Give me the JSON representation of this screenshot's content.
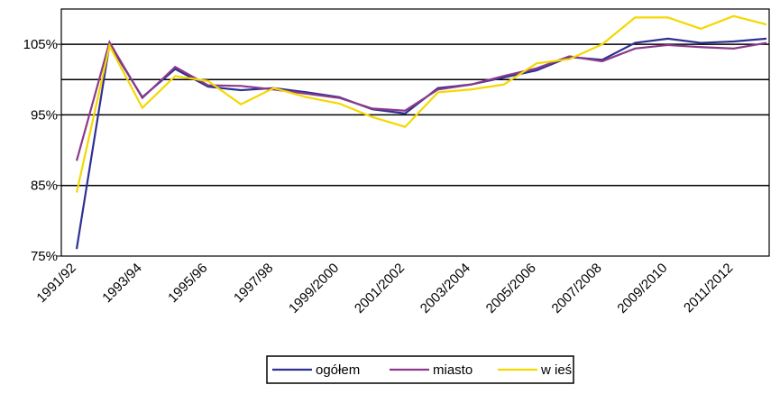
{
  "chart_data": {
    "type": "line",
    "categories": [
      "1991/92",
      null,
      "1993/94",
      null,
      "1995/96",
      null,
      "1997/98",
      null,
      "1999/2000",
      null,
      "2001/2002",
      null,
      "2003/2004",
      null,
      "2005/2006",
      null,
      "2007/2008",
      null,
      "2009/2010",
      null,
      "2011/2012",
      null
    ],
    "series": [
      {
        "name": "ogółem",
        "color": "#2e3192",
        "values": [
          76,
          105,
          97.5,
          101.5,
          99,
          98.5,
          98.8,
          98.2,
          97.5,
          95.8,
          95.2,
          98.8,
          99.3,
          100.3,
          101.3,
          103.2,
          102.8,
          105.2,
          105.8,
          105.2,
          105.4,
          105.8
        ]
      },
      {
        "name": "miasto",
        "color": "#8b3a8b",
        "values": [
          88.5,
          105.3,
          97.4,
          101.8,
          99.2,
          99.1,
          98.6,
          98.0,
          97.4,
          95.9,
          95.6,
          98.6,
          99.3,
          100.5,
          101.6,
          103.3,
          102.6,
          104.4,
          104.9,
          104.6,
          104.4,
          105.2
        ]
      },
      {
        "name": "w ieś",
        "color": "#f5d800",
        "values": [
          84,
          104.8,
          96.0,
          100.5,
          99.8,
          96.5,
          98.8,
          97.5,
          96.6,
          94.7,
          93.3,
          98.2,
          98.6,
          99.3,
          102.3,
          102.9,
          105.0,
          108.8,
          108.8,
          107.2,
          109.0,
          107.8
        ]
      }
    ],
    "ylim": [
      75,
      110
    ],
    "yticks": [
      {
        "value": 75,
        "label": "75%"
      },
      {
        "value": 85,
        "label": "85%"
      },
      {
        "value": 95,
        "label": "95%"
      },
      {
        "value": 105,
        "label": "105%"
      }
    ],
    "grid_lines": [
      85,
      95,
      100,
      105
    ],
    "legend": "bottom"
  }
}
